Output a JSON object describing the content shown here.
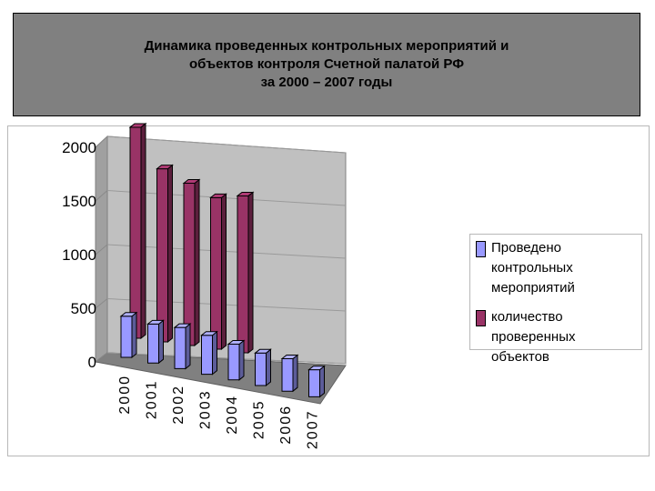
{
  "title": {
    "lines": [
      "Динамика проведенных контрольных мероприятий и",
      "объектов контроля Счетной палатой РФ",
      "за 2000 – 2007 годы"
    ]
  },
  "chart_data": {
    "type": "bar",
    "categories": [
      "2000",
      "2001",
      "2002",
      "2003",
      "2004",
      "2005",
      "2006",
      "2007"
    ],
    "series": [
      {
        "name": "Проведено контрольных мероприятий",
        "values": [
          380,
          360,
          380,
          360,
          330,
          300,
          300,
          250
        ],
        "color": "#9999ff"
      },
      {
        "name": "количество проверенных объектов",
        "values": [
          1950,
          1600,
          1500,
          1400,
          1450,
          null,
          null,
          null
        ],
        "color": "#993366"
      }
    ],
    "yticks": [
      "0",
      "500",
      "1000",
      "1500",
      "2000"
    ],
    "ylim": [
      0,
      2000
    ],
    "legend_position": "right",
    "style": "3d-column"
  },
  "legend": {
    "items": [
      {
        "label_lines": [
          "Проведено контрольных",
          "мероприятий"
        ],
        "color": "#9999ff"
      },
      {
        "label_lines": [
          "количество проверенных",
          "объектов"
        ],
        "color": "#993366"
      }
    ]
  }
}
